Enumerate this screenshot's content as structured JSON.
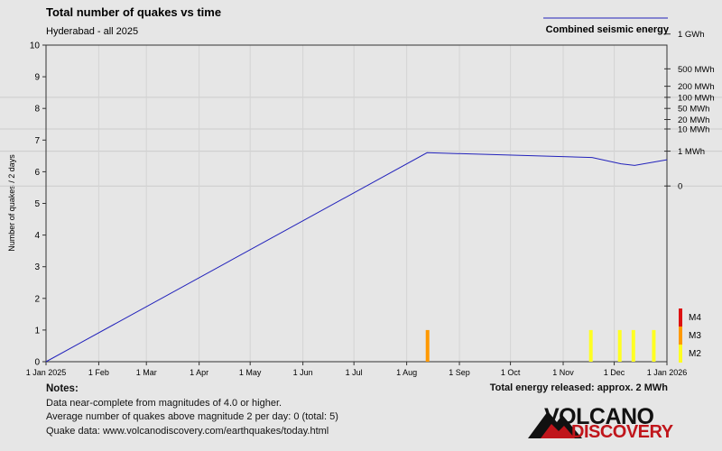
{
  "chart_data": {
    "type": "bar",
    "title": "Total number of quakes vs time",
    "subtitle": "Hyderabad - all 2025",
    "ylabel": "Number of quakes / 2 days",
    "ylim": [
      0,
      10
    ],
    "y_ticks": [
      "0",
      "1",
      "2",
      "3",
      "4",
      "5",
      "6",
      "7",
      "8",
      "9",
      "10"
    ],
    "x_domain": [
      "2025-01-01",
      "2026-01-01"
    ],
    "x_ticks": [
      {
        "date": "2025-01-01",
        "label": "1 Jan 2025"
      },
      {
        "date": "2025-02-01",
        "label": "1 Feb"
      },
      {
        "date": "2025-03-01",
        "label": "1 Mar"
      },
      {
        "date": "2025-04-01",
        "label": "1 Apr"
      },
      {
        "date": "2025-05-01",
        "label": "1 May"
      },
      {
        "date": "2025-06-01",
        "label": "1 Jun"
      },
      {
        "date": "2025-07-01",
        "label": "1 Jul"
      },
      {
        "date": "2025-08-01",
        "label": "1 Aug"
      },
      {
        "date": "2025-09-01",
        "label": "1 Sep"
      },
      {
        "date": "2025-10-01",
        "label": "1 Oct"
      },
      {
        "date": "2025-11-01",
        "label": "1 Nov"
      },
      {
        "date": "2025-12-01",
        "label": "1 Dec"
      },
      {
        "date": "2026-01-01",
        "label": "1 Jan 2026"
      }
    ],
    "quakes": [
      {
        "date": "2025-08-13",
        "count": 1,
        "magnitude_class": "M3"
      },
      {
        "date": "2025-11-17",
        "count": 1,
        "magnitude_class": "M2"
      },
      {
        "date": "2025-12-04",
        "count": 1,
        "magnitude_class": "M2"
      },
      {
        "date": "2025-12-12",
        "count": 1,
        "magnitude_class": "M2"
      },
      {
        "date": "2025-12-24",
        "count": 1,
        "magnitude_class": "M2"
      }
    ],
    "energy_series": {
      "name": "Combined seismic energy",
      "color": "#2222bb",
      "points": [
        {
          "date": "2025-01-01",
          "y": 0
        },
        {
          "date": "2025-08-13",
          "y": 6.6
        },
        {
          "date": "2025-11-18",
          "y": 6.45
        },
        {
          "date": "2025-12-05",
          "y": 6.25
        },
        {
          "date": "2025-12-13",
          "y": 6.2
        },
        {
          "date": "2026-01-01",
          "y": 6.38
        }
      ]
    },
    "energy_ticks": [
      {
        "label": "1 GWh",
        "y": 10.35
      },
      {
        "label": "500 MWh",
        "y": 9.25
      },
      {
        "label": "200 MWh",
        "y": 8.7
      },
      {
        "label": "100 MWh",
        "y": 8.35
      },
      {
        "label": "50 MWh",
        "y": 8.0
      },
      {
        "label": "20 MWh",
        "y": 7.65
      },
      {
        "label": "10 MWh",
        "y": 7.35
      },
      {
        "label": "1 MWh",
        "y": 6.65
      },
      {
        "label": "0",
        "y": 5.55
      }
    ],
    "energy_gridlines": [
      8.35,
      7.35,
      6.65,
      5.55
    ],
    "magnitude_legend": [
      {
        "label": "M4",
        "color": "#dd1111"
      },
      {
        "label": "M3",
        "color": "#ff9900"
      },
      {
        "label": "M2",
        "color": "#ffff22"
      }
    ],
    "colors": {
      "M3": "#ff9900",
      "M2": "#ffff22",
      "grid": "#cccccc"
    },
    "grid": true
  },
  "notes": {
    "header": "Notes:",
    "lines": [
      "Data near-complete from magnitudes of 4.0 or higher.",
      "Average number of quakes above magnitude 2 per day: 0 (total: 5)",
      "Quake data: www.volcanodiscovery.com/earthquakes/today.html"
    ]
  },
  "energy_total": "Total energy released: approx. 2 MWh",
  "logo": {
    "line1": "VOLCANO",
    "line2": "DISCOVERY"
  }
}
